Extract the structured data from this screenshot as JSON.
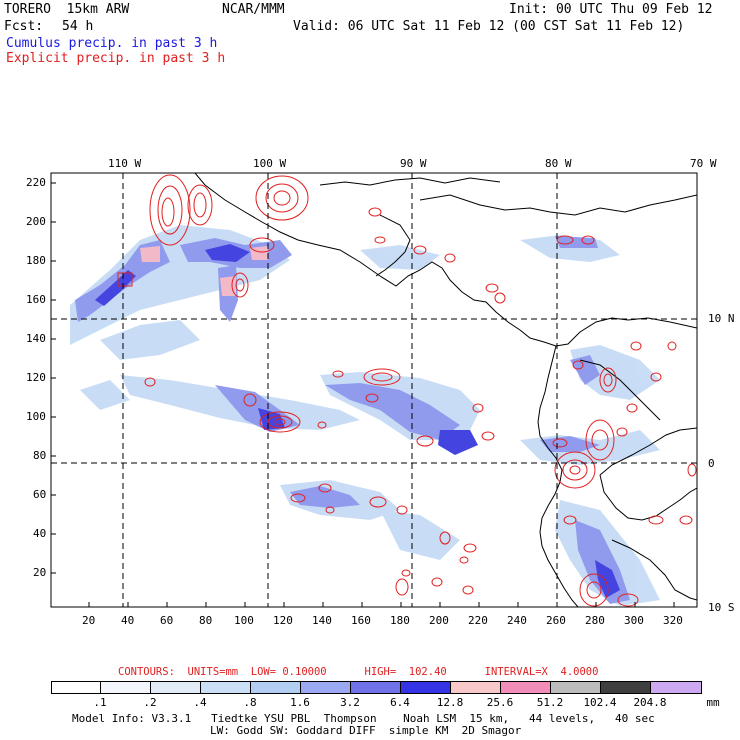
{
  "header": {
    "model": "TORERO  15km ARW",
    "source": "NCAR/MMM",
    "init": "Init: 00 UTC Thu 09 Feb 12",
    "fcst_label": "Fcst:",
    "fcst_value": "54 h",
    "valid": "Valid: 06 UTC Sat 11 Feb 12 (00 CST Sat 11 Feb 12)",
    "cumulus": "Cumulus precip. in past 3 h",
    "explicit": "Explicit precip. in past 3 h"
  },
  "map": {
    "top_lon_labels": [
      "110 W",
      "100 W",
      "90 W",
      "80 W",
      "70 W"
    ],
    "right_lat_labels": [
      "10 N",
      "0",
      "10 S"
    ],
    "y_ticks": [
      "220",
      "200",
      "180",
      "160",
      "140",
      "120",
      "100",
      "80",
      "60",
      "40",
      "20"
    ],
    "x_ticks": [
      "20",
      "40",
      "60",
      "80",
      "100",
      "120",
      "140",
      "160",
      "180",
      "200",
      "220",
      "240",
      "260",
      "280",
      "300",
      "320"
    ],
    "colors": {
      "explicit_contour": "#e02020",
      "coast": "#000000",
      "light_blue": "#c6dcf5",
      "mid_blue": "#8c96ee",
      "deep_blue": "#3b3bdf"
    }
  },
  "contours": "CONTOURS:  UNITS=mm  LOW= 0.10000      HIGH=  102.40      INTERVAL=X  4.0000",
  "colorbar": {
    "labels": [
      ".1",
      ".2",
      ".4",
      ".8",
      "1.6",
      "3.2",
      "6.4",
      "12.8",
      "25.6",
      "51.2",
      "102.4",
      "204.8"
    ],
    "unit": "mm",
    "colors": [
      "#ffffff",
      "#f3f6fc",
      "#e2ecf9",
      "#cbdff6",
      "#b2cef2",
      "#9ba9f2",
      "#6f72e8",
      "#3434e6",
      "#f9c8c8",
      "#f28cb9",
      "#bcbcbc",
      "#3f3f3f",
      "#cda9f2"
    ]
  },
  "footer": {
    "line1": "Model Info: V3.3.1   Tiedtke YSU PBL  Thompson    Noah LSM  15 km,   44 levels,   40 sec",
    "line2": "LW: Godd SW: Goddard DIFF  simple KM  2D Smagor"
  }
}
